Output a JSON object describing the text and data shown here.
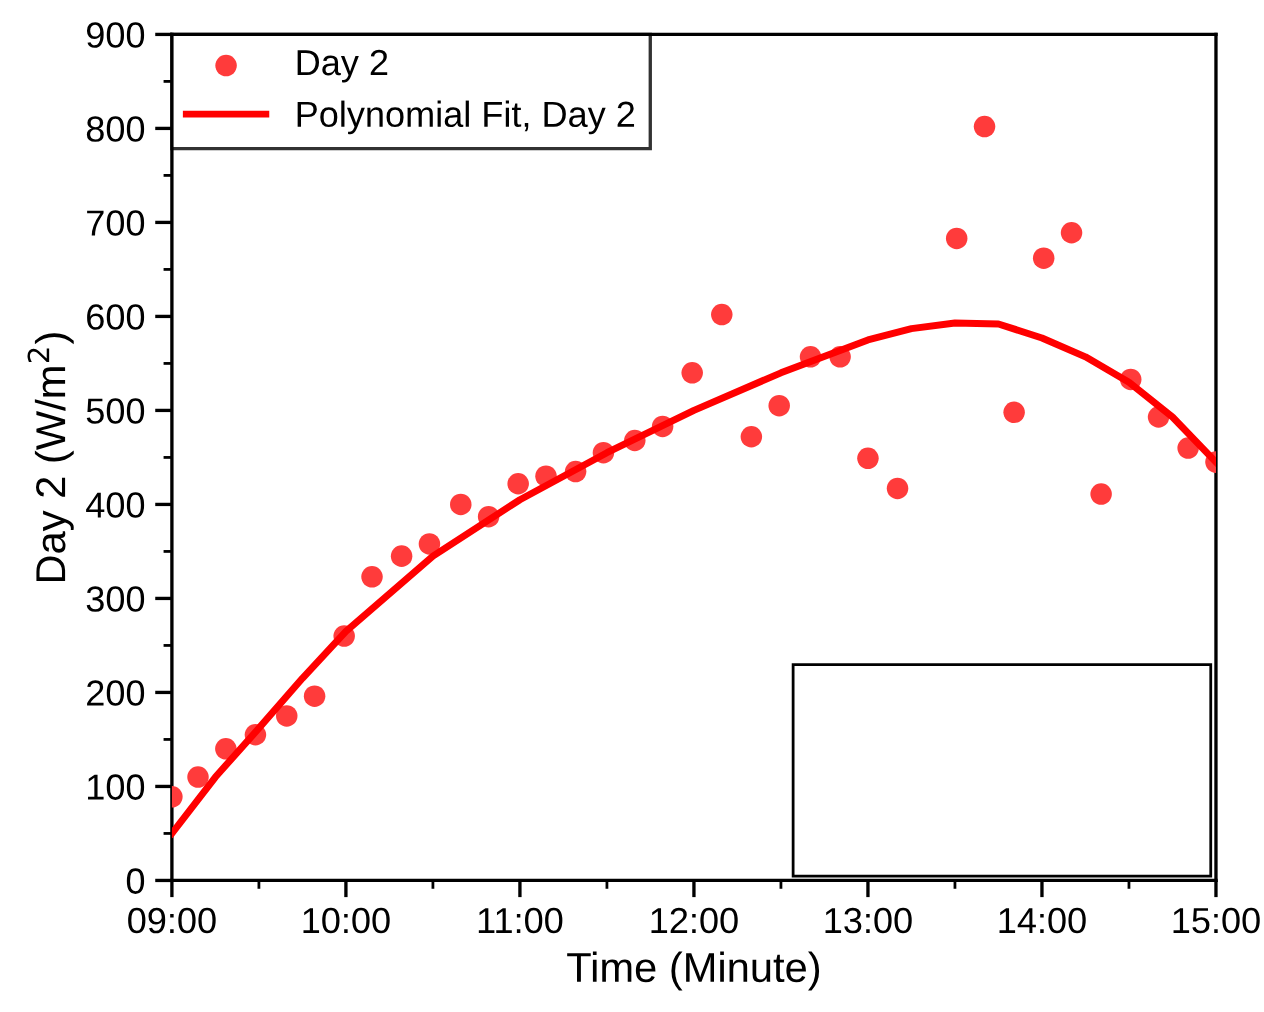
{
  "chart_data": {
    "type": "scatter",
    "xlabel": "Time (Minute)",
    "ylabel": "Day 2 (W/m$^{2}$)",
    "xlim": [
      9,
      15
    ],
    "ylim": [
      0,
      900
    ],
    "xticks": [
      {
        "value": 9,
        "label": "09:00"
      },
      {
        "value": 9.5,
        "label": null
      },
      {
        "value": 10,
        "label": "10:00"
      },
      {
        "value": 10.5,
        "label": null
      },
      {
        "value": 11,
        "label": "11:00"
      },
      {
        "value": 11.5,
        "label": null
      },
      {
        "value": 12,
        "label": "12:00"
      },
      {
        "value": 12.5,
        "label": null
      },
      {
        "value": 13,
        "label": "13:00"
      },
      {
        "value": 13.5,
        "label": null
      },
      {
        "value": 14,
        "label": "14:00"
      },
      {
        "value": 14.5,
        "label": null
      },
      {
        "value": 15,
        "label": "15:00"
      }
    ],
    "yticks": [
      0,
      {
        "value": 50,
        "label": null
      },
      100,
      {
        "value": 150,
        "label": null
      },
      200,
      {
        "value": 250,
        "label": null
      },
      300,
      {
        "value": 350,
        "label": null
      },
      400,
      {
        "value": 450,
        "label": null
      },
      500,
      {
        "value": 550,
        "label": null
      },
      600,
      {
        "value": 650,
        "label": null
      },
      700,
      {
        "value": 750,
        "label": null
      },
      800,
      {
        "value": 850,
        "label": null
      },
      900
    ],
    "grid": false,
    "legend": "top left",
    "series": [
      {
        "name": "Day 2",
        "marker": "circle",
        "color": "#ff3b3b",
        "x": [
          9.0,
          9.15,
          9.31,
          9.48,
          9.66,
          9.82,
          9.99,
          10.15,
          10.32,
          10.48,
          10.66,
          10.82,
          10.99,
          11.15,
          11.32,
          11.48,
          11.66,
          11.82,
          11.99,
          12.16,
          12.33,
          12.49,
          12.67,
          12.84,
          13.0,
          13.17,
          13.51,
          13.67,
          13.84,
          14.01,
          14.17,
          14.34,
          14.51,
          14.67,
          14.84,
          15.0
        ],
        "values": [
          89,
          110,
          140,
          155,
          175,
          196,
          260,
          323,
          345,
          358,
          400,
          387,
          422,
          430,
          435,
          455,
          468,
          483,
          540,
          602,
          472,
          505,
          557,
          557,
          449,
          417,
          683,
          802,
          498,
          662,
          689,
          411,
          533,
          493,
          460,
          445
        ]
      },
      {
        "name": "Polynomial Fit, Day 2",
        "type": "line",
        "marker": "none",
        "line_style": "solid",
        "color": "#ff0000",
        "x": [
          9.0,
          9.25,
          9.5,
          9.75,
          10.0,
          10.5,
          11.0,
          11.5,
          12.0,
          12.5,
          13.0,
          13.25,
          13.5,
          13.75,
          14.0,
          14.25,
          14.5,
          14.75,
          15.0
        ],
        "values": [
          50,
          110,
          162,
          215,
          265,
          345,
          405,
          455,
          500,
          540,
          575,
          587,
          593,
          592,
          577,
          557,
          530,
          493,
          445
        ]
      }
    ]
  }
}
